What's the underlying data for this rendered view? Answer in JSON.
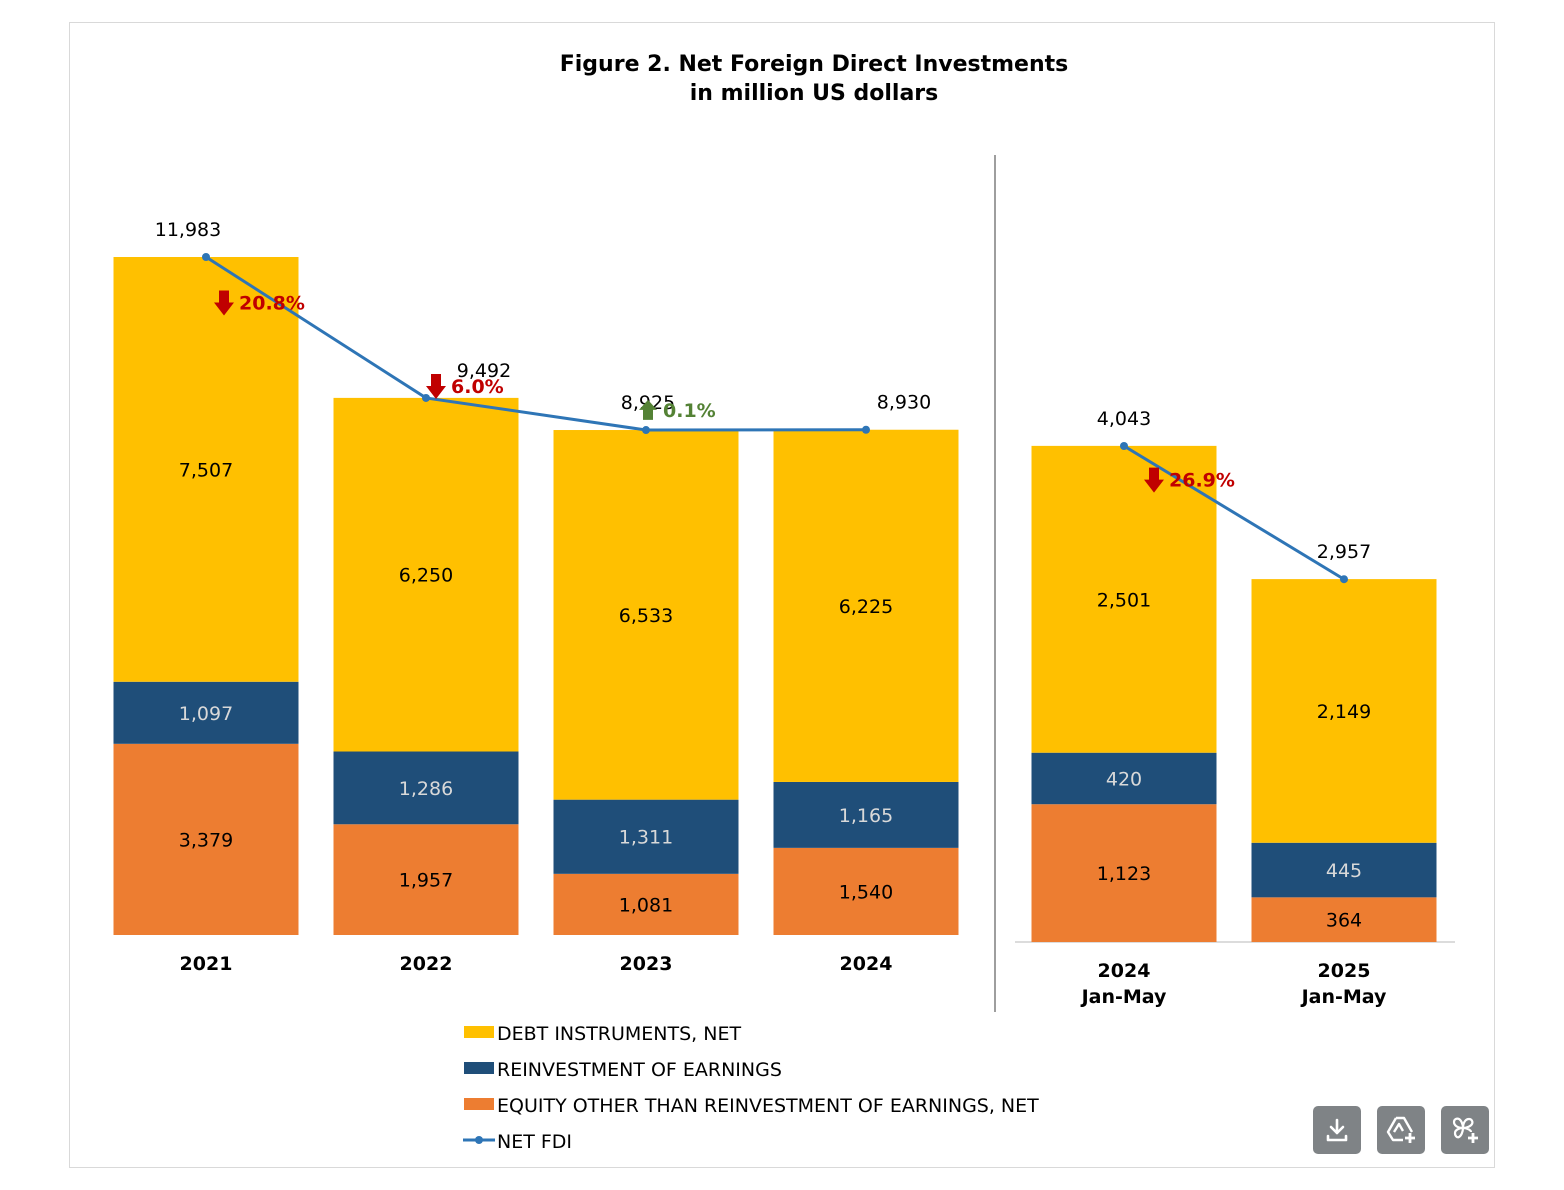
{
  "chart_data": {
    "type": "bar",
    "stacked": true,
    "title": [
      "Figure 2. Net Foreign Direct Investments",
      "in million US dollars"
    ],
    "legend_position": "bottom",
    "grid": false,
    "series": [
      {
        "name": "DEBT INSTRUMENTS, NET",
        "color": "#FFC000"
      },
      {
        "name": "REINVESTMENT OF EARNINGS",
        "color": "#1F4E79"
      },
      {
        "name": "EQUITY OTHER THAN REINVESTMENT OF EARNINGS, NET",
        "color": "#ED7D31"
      },
      {
        "name": "NET FDI",
        "color": "#2E75B6",
        "type": "line"
      }
    ],
    "panels": [
      {
        "categories": [
          [
            "2021"
          ],
          [
            "2022"
          ],
          [
            "2023"
          ],
          [
            "2024"
          ]
        ],
        "equity": [
          3379,
          1957,
          1081,
          1540
        ],
        "reinvestment": [
          1097,
          1286,
          1311,
          1165
        ],
        "debt": [
          7507,
          6250,
          6533,
          6225
        ],
        "net_fdi": [
          11983,
          9492,
          8925,
          8930
        ],
        "net_fdi_labels": [
          "11,983",
          "9,492",
          "8,925",
          "8,930"
        ],
        "equity_labels": [
          "3,379",
          "1,957",
          "1,081",
          "1,540"
        ],
        "reinvestment_labels": [
          "1,097",
          "1,286",
          "1,311",
          "1,165"
        ],
        "debt_labels": [
          "7,507",
          "6,250",
          "6,533",
          "6,225"
        ],
        "changes": [
          {
            "text": "20.8%",
            "direction": "down",
            "color": "#C00000"
          },
          {
            "text": "6.0%",
            "direction": "down",
            "color": "#C00000"
          },
          {
            "text": "0.1%",
            "direction": "up",
            "color": "#548235"
          }
        ]
      },
      {
        "categories": [
          [
            "2024",
            "Jan-May"
          ],
          [
            "2025",
            "Jan-May"
          ]
        ],
        "equity": [
          1123,
          364
        ],
        "reinvestment": [
          420,
          445
        ],
        "debt": [
          2501,
          2149
        ],
        "net_fdi": [
          4043,
          2957
        ],
        "net_fdi_labels": [
          "4,043",
          "2,957"
        ],
        "equity_labels": [
          "1,123",
          "364"
        ],
        "reinvestment_labels": [
          "420",
          "445"
        ],
        "debt_labels": [
          "2,501",
          "2,149"
        ],
        "changes": [
          {
            "text": "26.9%",
            "direction": "down",
            "color": "#C00000"
          }
        ]
      }
    ]
  },
  "toolbar": {
    "icons": [
      "download-icon",
      "add-to-drive-icon",
      "add-to-pinwheel-icon"
    ]
  }
}
